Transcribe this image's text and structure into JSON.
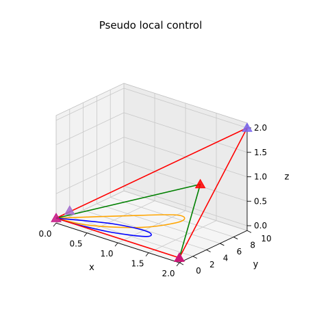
{
  "chart_data": {
    "type": "3d-line",
    "title": "Pseudo local control",
    "xlabel": "x",
    "ylabel": "y",
    "zlabel": "z",
    "xlim": [
      0,
      2
    ],
    "ylim": [
      0,
      10
    ],
    "zlim": [
      0,
      2
    ],
    "xticks": [
      "0.0",
      "0.5",
      "1.0",
      "1.5",
      "2.0"
    ],
    "yticks": [
      "0",
      "2",
      "4",
      "6",
      "8",
      "10"
    ],
    "zticks": [
      "0.0",
      "0.5",
      "1.0",
      "1.5",
      "2.0"
    ],
    "grid": true,
    "series": [
      {
        "color": "#ff0000",
        "style": "line",
        "points": [
          [
            0,
            0,
            0
          ],
          [
            2,
            0,
            0
          ],
          [
            2,
            10,
            2
          ],
          [
            0,
            0,
            0
          ]
        ]
      },
      {
        "color": "#008000",
        "style": "line",
        "points": [
          [
            0,
            0,
            0
          ],
          [
            1.9,
            4,
            1.2
          ],
          [
            2,
            0,
            0
          ]
        ]
      },
      {
        "color": "#ffa500",
        "style": "curve",
        "points": [
          [
            0,
            0,
            0
          ],
          [
            0.8,
            2.6,
            0.2
          ],
          [
            1.55,
            3.7,
            0.45
          ],
          [
            1.65,
            3.4,
            0.38
          ],
          [
            1.2,
            1.8,
            0.18
          ],
          [
            0.5,
            0.4,
            0.03
          ],
          [
            0,
            0,
            0
          ]
        ]
      },
      {
        "color": "#0000ff",
        "style": "curve",
        "points": [
          [
            0,
            0,
            0
          ],
          [
            0.75,
            1.4,
            0.1
          ],
          [
            1.3,
            1.6,
            0.15
          ],
          [
            1.35,
            1.1,
            0.1
          ],
          [
            0.85,
            0.4,
            0.03
          ],
          [
            0.3,
            0.05,
            0.0
          ],
          [
            0,
            0,
            0
          ]
        ]
      },
      {
        "color": "#ff0000",
        "style": "markers",
        "marker": "triangle",
        "points": [
          [
            2,
            0,
            0
          ],
          [
            1.9,
            4,
            1.2
          ]
        ]
      },
      {
        "color": "#c71585",
        "style": "markers",
        "marker": "triangle",
        "points": [
          [
            0,
            0,
            0
          ],
          [
            2,
            0,
            0
          ]
        ]
      },
      {
        "color": "#a56fcf",
        "style": "markers",
        "marker": "triangle",
        "points": [
          [
            0,
            2,
            0.02
          ]
        ]
      },
      {
        "color": "#7b68ee",
        "style": "markers",
        "marker": "triangle",
        "points": [
          [
            2,
            10,
            2
          ]
        ]
      }
    ]
  }
}
